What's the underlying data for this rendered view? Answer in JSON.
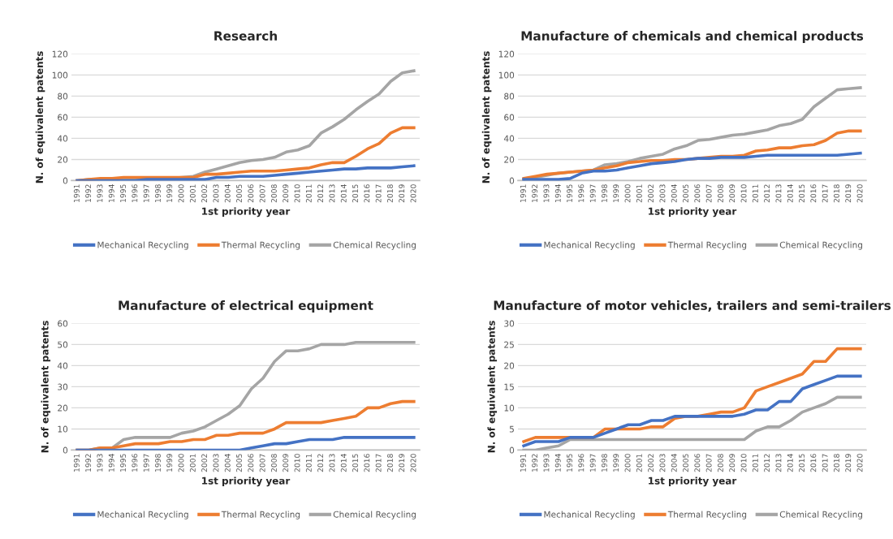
{
  "chart_data": [
    {
      "type": "line",
      "title": "Research",
      "xlabel": "1st priority year",
      "ylabel": "N. of equivalent patents",
      "categories": [
        "1991",
        "1992",
        "1993",
        "1994",
        "1995",
        "1996",
        "1997",
        "1998",
        "1999",
        "2000",
        "2001",
        "2002",
        "2003",
        "2004",
        "2005",
        "2006",
        "2007",
        "2008",
        "2009",
        "2010",
        "2011",
        "2012",
        "2013",
        "2014",
        "2015",
        "2016",
        "2017",
        "2018",
        "2019",
        "2020"
      ],
      "ylim": [
        0,
        120
      ],
      "yticks": [
        0,
        20,
        40,
        60,
        80,
        100,
        120
      ],
      "grid": "y",
      "legend": "bottom",
      "series": [
        {
          "name": "Mechanical Recycling",
          "color": "#4472c4",
          "values": [
            0,
            0,
            0,
            0,
            0,
            0,
            1,
            1,
            1,
            1,
            1,
            1,
            3,
            3,
            4,
            4,
            4,
            5,
            6,
            7,
            8,
            9,
            10,
            11,
            11,
            12,
            12,
            12,
            13,
            14
          ]
        },
        {
          "name": "Thermal Recycling",
          "color": "#ed7d31",
          "values": [
            0,
            1,
            2,
            2,
            3,
            3,
            3,
            3,
            3,
            3,
            3,
            6,
            6,
            7,
            8,
            9,
            9,
            9,
            10,
            11,
            12,
            15,
            17,
            17,
            23,
            30,
            35,
            45,
            50,
            50
          ]
        },
        {
          "name": "Chemical Recycling",
          "color": "#a5a5a5",
          "values": [
            0,
            1,
            1,
            1,
            2,
            2,
            2,
            2,
            2,
            3,
            4,
            8,
            11,
            14,
            17,
            19,
            20,
            22,
            27,
            29,
            33,
            45,
            51,
            58,
            67,
            75,
            82,
            94,
            102,
            104
          ]
        }
      ]
    },
    {
      "type": "line",
      "title": "Manufacture of chemicals and chemical products",
      "xlabel": "1st priority year",
      "ylabel": "N. of equivalent patents",
      "categories": [
        "1991",
        "1992",
        "1993",
        "1994",
        "1995",
        "1996",
        "1997",
        "1998",
        "1999",
        "2000",
        "2001",
        "2002",
        "2003",
        "2004",
        "2005",
        "2006",
        "2007",
        "2008",
        "2009",
        "2010",
        "2011",
        "2012",
        "2013",
        "2014",
        "2015",
        "2016",
        "2017",
        "2018",
        "2019",
        "2020"
      ],
      "ylim": [
        0,
        120
      ],
      "yticks": [
        0,
        20,
        40,
        60,
        80,
        100,
        120
      ],
      "grid": "y",
      "legend": "bottom",
      "series": [
        {
          "name": "Mechanical Recycling",
          "color": "#4472c4",
          "values": [
            1,
            1,
            1,
            1,
            2,
            7,
            9,
            9,
            10,
            12,
            14,
            16,
            17,
            18,
            20,
            21,
            21,
            22,
            22,
            22,
            23,
            24,
            24,
            24,
            24,
            24,
            24,
            24,
            25,
            26
          ]
        },
        {
          "name": "Thermal Recycling",
          "color": "#ed7d31",
          "values": [
            2,
            4,
            6,
            7,
            8,
            9,
            10,
            12,
            14,
            17,
            18,
            19,
            19,
            20,
            20,
            21,
            22,
            23,
            23,
            24,
            28,
            29,
            31,
            31,
            33,
            34,
            38,
            45,
            47,
            47
          ]
        },
        {
          "name": "Chemical Recycling",
          "color": "#a5a5a5",
          "values": [
            1,
            3,
            5,
            7,
            8,
            9,
            10,
            15,
            16,
            18,
            21,
            23,
            25,
            30,
            33,
            38,
            39,
            41,
            43,
            44,
            46,
            48,
            52,
            54,
            58,
            70,
            78,
            86,
            87,
            88
          ]
        }
      ]
    },
    {
      "type": "line",
      "title": "Manufacture of electrical equipment",
      "xlabel": "1st priority year",
      "ylabel": "N. of equivalent patents",
      "categories": [
        "1991",
        "1992",
        "1993",
        "1994",
        "1995",
        "1996",
        "1997",
        "1998",
        "1999",
        "2000",
        "2001",
        "2002",
        "2003",
        "2004",
        "2005",
        "2006",
        "2007",
        "2008",
        "2009",
        "2010",
        "2011",
        "2012",
        "2013",
        "2014",
        "2015",
        "2016",
        "2017",
        "2018",
        "2019",
        "2020"
      ],
      "ylim": [
        0,
        60
      ],
      "yticks": [
        0,
        10,
        20,
        30,
        40,
        50,
        60
      ],
      "grid": "y",
      "legend": "bottom",
      "series": [
        {
          "name": "Mechanical Recycling",
          "color": "#4472c4",
          "values": [
            0,
            0,
            0,
            0,
            0,
            0,
            0,
            0,
            0,
            0,
            0,
            0,
            0,
            0,
            0,
            1,
            2,
            3,
            3,
            4,
            5,
            5,
            5,
            6,
            6,
            6,
            6,
            6,
            6,
            6
          ]
        },
        {
          "name": "Thermal Recycling",
          "color": "#ed7d31",
          "values": [
            0,
            0,
            1,
            1,
            2,
            3,
            3,
            3,
            4,
            4,
            5,
            5,
            7,
            7,
            8,
            8,
            8,
            10,
            13,
            13,
            13,
            13,
            14,
            15,
            16,
            20,
            20,
            22,
            23,
            23
          ]
        },
        {
          "name": "Chemical Recycling",
          "color": "#a5a5a5",
          "values": [
            0,
            0,
            1,
            1,
            5,
            6,
            6,
            6,
            6,
            8,
            9,
            11,
            14,
            17,
            21,
            29,
            34,
            42,
            47,
            47,
            48,
            50,
            50,
            50,
            51,
            51,
            51,
            51,
            51,
            51
          ]
        }
      ]
    },
    {
      "type": "line",
      "title": "Manufacture of motor vehicles, trailers and semi-trailers",
      "xlabel": "1st priority year",
      "ylabel": "N. of equivalent patents",
      "categories": [
        "1991",
        "1992",
        "1993",
        "1994",
        "1995",
        "1996",
        "1997",
        "1998",
        "1999",
        "2000",
        "2001",
        "2002",
        "2003",
        "2004",
        "2005",
        "2006",
        "2007",
        "2008",
        "2009",
        "2010",
        "2011",
        "2012",
        "2013",
        "2014",
        "2015",
        "2016",
        "2017",
        "2018",
        "2019",
        "2020"
      ],
      "ylim": [
        0,
        30
      ],
      "yticks": [
        0,
        5,
        10,
        15,
        20,
        25,
        30
      ],
      "grid": "y",
      "legend": "bottom",
      "series": [
        {
          "name": "Mechanical Recycling",
          "color": "#4472c4",
          "values": [
            1,
            2,
            2,
            2,
            3,
            3,
            3,
            4,
            5,
            6,
            6,
            7,
            7,
            8,
            8,
            8,
            8,
            8,
            8,
            8.5,
            9.5,
            9.5,
            11.5,
            11.5,
            14.5,
            15.5,
            16.5,
            17.5,
            17.5,
            17.5
          ]
        },
        {
          "name": "Thermal Recycling",
          "color": "#ed7d31",
          "values": [
            2,
            3,
            3,
            3,
            3,
            3,
            3,
            5,
            5,
            5,
            5,
            5.5,
            5.5,
            7.5,
            8,
            8,
            8.5,
            9,
            9,
            10,
            14,
            15,
            16,
            17,
            18,
            21,
            21,
            24,
            24,
            24
          ]
        },
        {
          "name": "Chemical Recycling",
          "color": "#a5a5a5",
          "values": [
            0,
            0,
            0.5,
            1,
            2.5,
            2.5,
            2.5,
            2.5,
            2.5,
            2.5,
            2.5,
            2.5,
            2.5,
            2.5,
            2.5,
            2.5,
            2.5,
            2.5,
            2.5,
            2.5,
            4.5,
            5.5,
            5.5,
            7,
            9,
            10,
            11,
            12.5,
            12.5,
            12.5
          ]
        }
      ]
    }
  ]
}
